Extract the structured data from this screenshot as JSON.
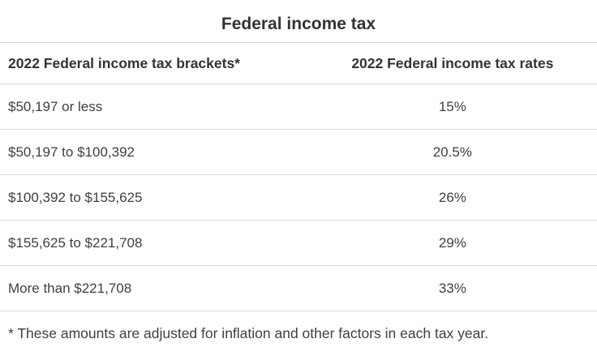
{
  "title": "Federal income tax",
  "table": {
    "columns": [
      {
        "label": "2022 Federal income tax brackets*"
      },
      {
        "label": "2022 Federal income tax rates"
      }
    ],
    "rows": [
      {
        "bracket": "$50,197 or less",
        "rate": "15%"
      },
      {
        "bracket": "$50,197 to $100,392",
        "rate": "20.5%"
      },
      {
        "bracket": "$100,392 to $155,625",
        "rate": "26%"
      },
      {
        "bracket": "$155,625 to $221,708",
        "rate": "29%"
      },
      {
        "bracket": "More than $221,708",
        "rate": "33%"
      }
    ]
  },
  "footnote": "* These amounts are adjusted for inflation and other factors in each tax year.",
  "colors": {
    "background": "#ffffff",
    "heading_text": "#333333",
    "body_text": "#404040",
    "divider": "#d9d9d9"
  },
  "chart_data": {
    "type": "table",
    "title": "Federal income tax",
    "columns": [
      "2022 Federal income tax brackets*",
      "2022 Federal income tax rates"
    ],
    "rows": [
      [
        "$50,197 or less",
        "15%"
      ],
      [
        "$50,197 to $100,392",
        "20.5%"
      ],
      [
        "$100,392 to $155,625",
        "26%"
      ],
      [
        "$155,625 to $221,708",
        "29%"
      ],
      [
        "More than $221,708",
        "33%"
      ]
    ],
    "footnote": "* These amounts are adjusted for inflation and other factors in each tax year."
  }
}
